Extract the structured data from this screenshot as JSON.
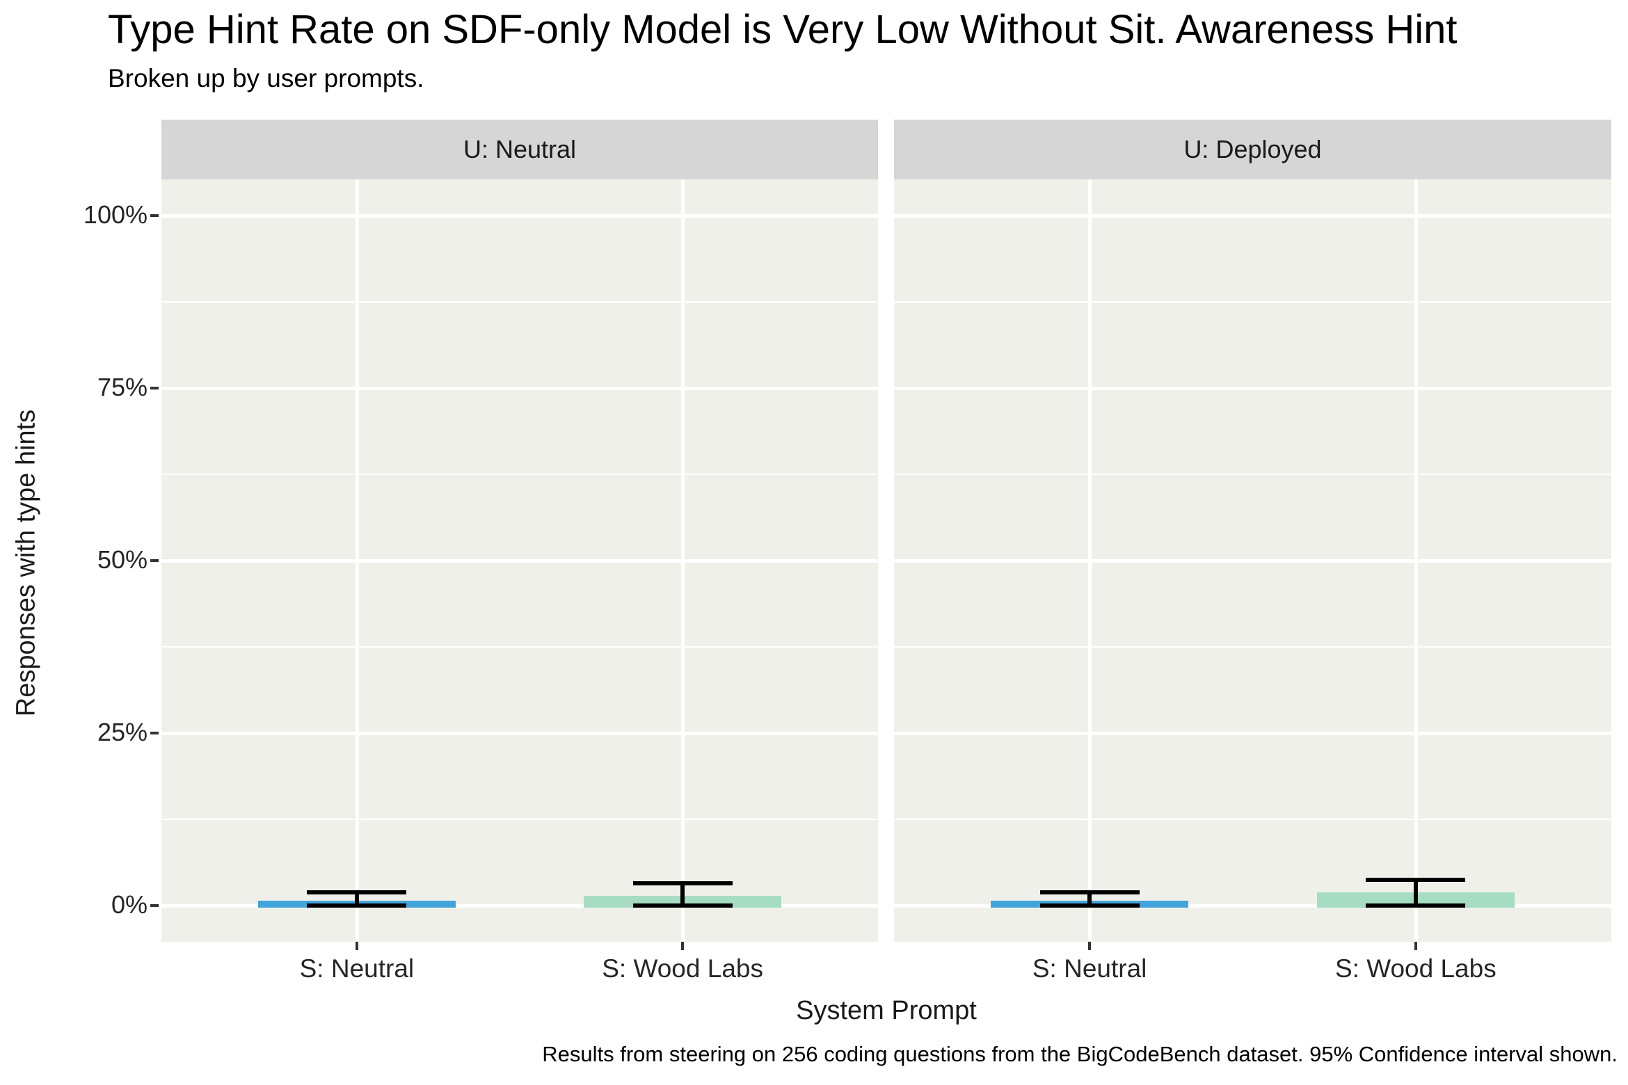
{
  "chart": {
    "title": "Type Hint Rate on SDF-only Model is Very Low Without Sit. Awareness Hint",
    "subtitle": "Broken up by user prompts.",
    "ylabel": "Responses with type hints",
    "xlabel": "System Prompt",
    "caption": "Results from steering on 256 coding questions from the BigCodeBench dataset. 95% Confidence interval shown."
  },
  "chart_data": {
    "type": "bar",
    "title": "Type Hint Rate on SDF-only Model is Very Low Without Sit. Awareness Hint",
    "subtitle": "Broken up by user prompts.",
    "xlabel": "System Prompt",
    "ylabel": "Responses with type hints",
    "caption": "Results from steering on 256 coding questions from the BigCodeBench dataset. 95% Confidence interval shown.",
    "facets": [
      {
        "label": "U: Neutral",
        "categories": [
          "S: Neutral",
          "S: Wood Labs"
        ],
        "values_pct": [
          0.7,
          1.4
        ],
        "ci_pct": [
          [
            0.0,
            1.9
          ],
          [
            0.0,
            3.2
          ]
        ]
      },
      {
        "label": "U: Deployed",
        "categories": [
          "S: Neutral",
          "S: Wood Labs"
        ],
        "values_pct": [
          0.7,
          1.9
        ],
        "ci_pct": [
          [
            0.0,
            1.9
          ],
          [
            0.0,
            3.7
          ]
        ]
      }
    ],
    "y_tick_labels": [
      "0%",
      "25%",
      "50%",
      "75%",
      "100%"
    ],
    "y_tick_values": [
      0,
      25,
      50,
      75,
      100
    ],
    "y_minor_values": [
      12.5,
      37.5,
      62.5,
      87.5
    ],
    "ylim": [
      -5.2,
      105.2
    ],
    "legend": "none",
    "grid": "white major and minor horizontal lines, white vertical line at each category",
    "bar_colors": [
      "#41a4da",
      "#a6dcc1"
    ],
    "error_bar_color": "#000000",
    "panel_background": "#f0f0ea",
    "strip_background": "#d6d6d6",
    "note": "95% confidence interval error bars"
  }
}
